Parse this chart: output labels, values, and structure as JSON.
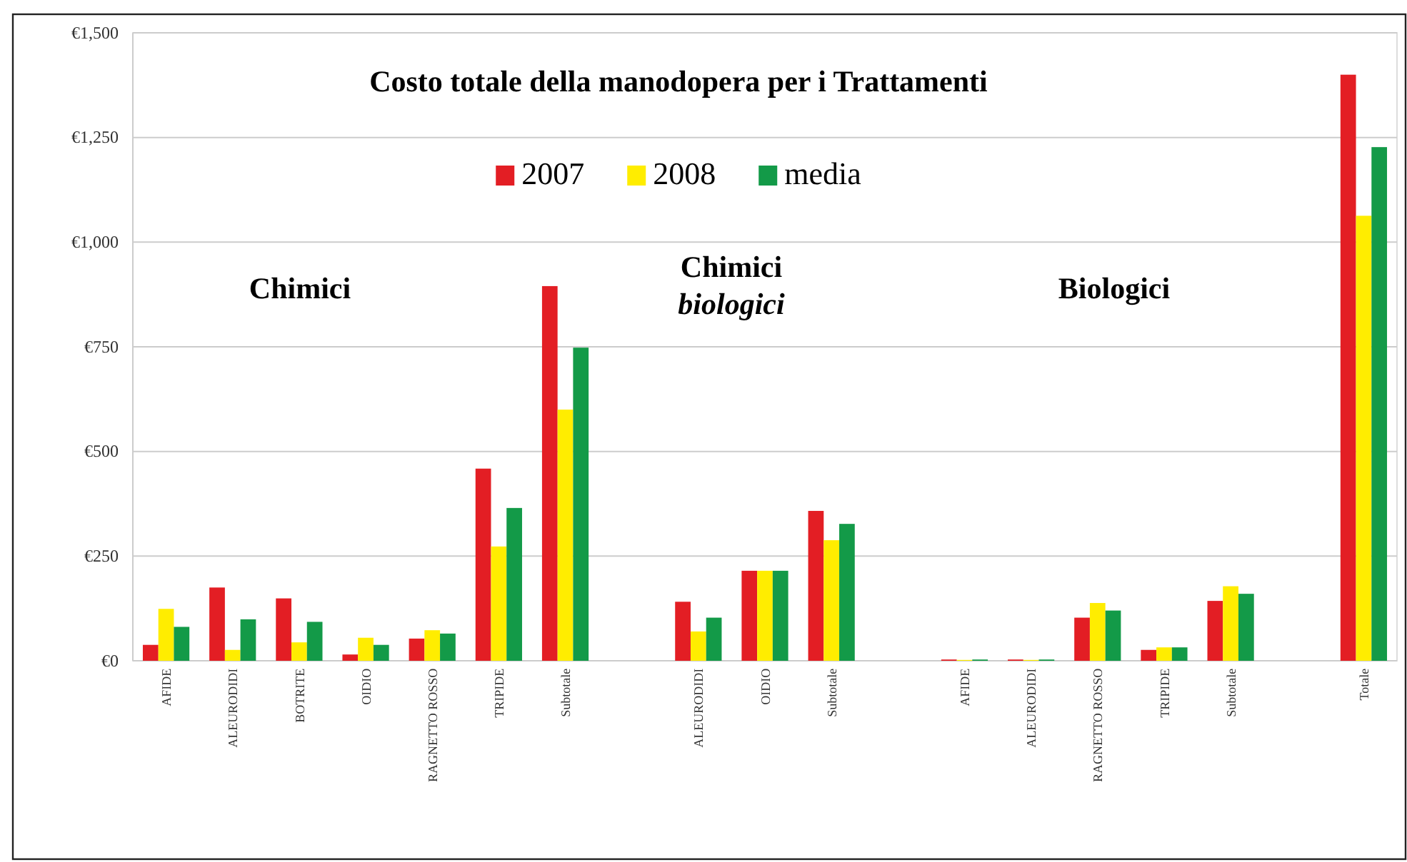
{
  "chart_data": {
    "type": "bar",
    "title": "Costo totale della manodopera per i Trattamenti",
    "categories": [
      "AFIDE",
      "ALEURODIDI",
      "BOTRITE",
      "OIDIO",
      "RAGNETTO ROSSO",
      "TRIPIDE",
      "Subtotale",
      null,
      "ALEURODIDI",
      "OIDIO",
      "Subtotale",
      null,
      "AFIDE",
      "ALEURODIDI",
      "RAGNETTO ROSSO",
      "TRIPIDE",
      "Subtotale",
      null,
      "Totale"
    ],
    "series": [
      {
        "name": "2007",
        "color": "#e31e24",
        "values": [
          38,
          175,
          149,
          15,
          53,
          459,
          895,
          null,
          141,
          215,
          358,
          null,
          3,
          3,
          103,
          26,
          143,
          null,
          1400
        ]
      },
      {
        "name": "2008",
        "color": "#ffed00",
        "values": [
          124,
          26,
          44,
          55,
          73,
          273,
          600,
          null,
          70,
          215,
          288,
          null,
          2,
          2,
          138,
          32,
          178,
          null,
          1063
        ]
      },
      {
        "name": "media",
        "color": "#139a48",
        "values": [
          81,
          99,
          93,
          38,
          65,
          365,
          748,
          null,
          103,
          215,
          327,
          null,
          3,
          3,
          120,
          32,
          160,
          null,
          1227
        ]
      }
    ],
    "ylim": [
      0,
      1500
    ],
    "yticks": [
      {
        "value": 0,
        "label": "€0"
      },
      {
        "value": 250,
        "label": "€250"
      },
      {
        "value": 500,
        "label": "€500"
      },
      {
        "value": 750,
        "label": "€750"
      },
      {
        "value": 1000,
        "label": "€1,000"
      },
      {
        "value": 1250,
        "label": "€1,250"
      },
      {
        "value": 1500,
        "label": "€1,500"
      }
    ],
    "grid": "y",
    "legend": "top",
    "annotations": [
      "Chimici",
      "Chimici\nbiologici",
      "Biologici"
    ]
  }
}
